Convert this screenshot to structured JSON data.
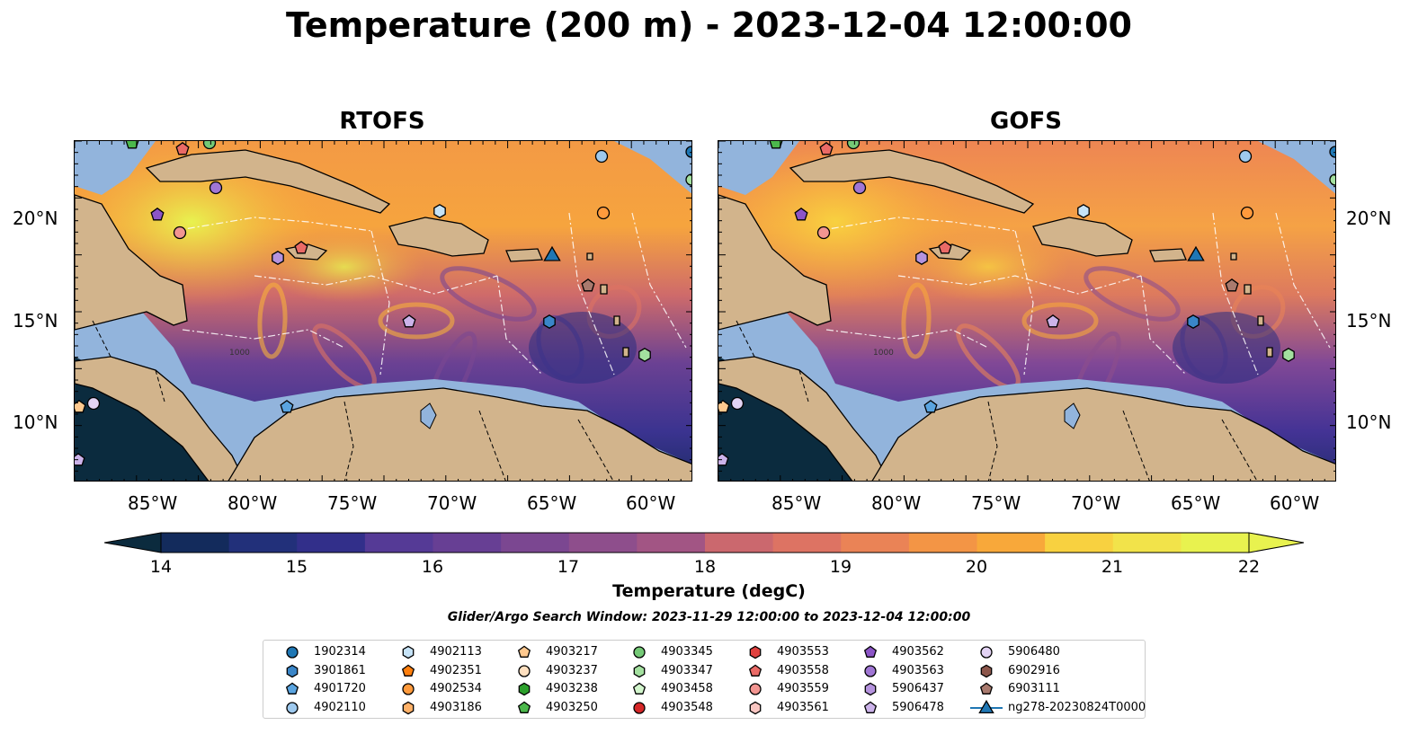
{
  "title": "Temperature (200 m) - 2023-12-04 12:00:00",
  "panels": [
    {
      "name": "RTOFS"
    },
    {
      "name": "GOFS"
    }
  ],
  "lon_ticks": [
    "85°W",
    "80°W",
    "75°W",
    "70°W",
    "65°W",
    "60°W"
  ],
  "lat_ticks": [
    "20°N",
    "15°N",
    "10°N"
  ],
  "colorbar": {
    "label": "Temperature (degC)",
    "min": 14,
    "max": 22,
    "ticks": [
      "14",
      "15",
      "16",
      "17",
      "18",
      "19",
      "20",
      "21",
      "22"
    ],
    "colors": [
      "#0b2b3e",
      "#132b5c",
      "#22307a",
      "#322f8a",
      "#443393",
      "#553a96",
      "#673f94",
      "#7b4791",
      "#8e4e8c",
      "#a25584",
      "#b75e79",
      "#cb686e",
      "#dd7363",
      "#ea8356",
      "#f39545",
      "#f8a83a",
      "#fbbd3b",
      "#f8d140",
      "#f2e34a",
      "#e8f24f"
    ]
  },
  "search_window": "Glider/Argo Search Window: 2023-11-29 12:00:00 to 2023-12-04 12:00:00",
  "legend": [
    {
      "label": "1902314",
      "marker": "circle",
      "color": "#1f77b4"
    },
    {
      "label": "3901861",
      "marker": "hexagon",
      "color": "#3a86c8"
    },
    {
      "label": "4901720",
      "marker": "pentagon",
      "color": "#5aa4e0"
    },
    {
      "label": "4902110",
      "marker": "circle",
      "color": "#9ec9ee"
    },
    {
      "label": "4902113",
      "marker": "hexagon",
      "color": "#c6e3f7"
    },
    {
      "label": "4902351",
      "marker": "pentagon",
      "color": "#ff7f0e"
    },
    {
      "label": "4902534",
      "marker": "circle",
      "color": "#ff9a3c"
    },
    {
      "label": "4903186",
      "marker": "hexagon",
      "color": "#ffb168"
    },
    {
      "label": "4903217",
      "marker": "pentagon",
      "color": "#ffc98f"
    },
    {
      "label": "4903237",
      "marker": "circle",
      "color": "#ffe0c0"
    },
    {
      "label": "4903238",
      "marker": "hexagon",
      "color": "#2ca02c"
    },
    {
      "label": "4903250",
      "marker": "pentagon",
      "color": "#4cb84c"
    },
    {
      "label": "4903345",
      "marker": "circle",
      "color": "#74c976"
    },
    {
      "label": "4903347",
      "marker": "hexagon",
      "color": "#a3e09f"
    },
    {
      "label": "4903458",
      "marker": "pentagon",
      "color": "#d2f5cc"
    },
    {
      "label": "4903548",
      "marker": "circle",
      "color": "#d62728"
    },
    {
      "label": "4903553",
      "marker": "hexagon",
      "color": "#e0413f"
    },
    {
      "label": "4903558",
      "marker": "pentagon",
      "color": "#ea6a66"
    },
    {
      "label": "4903559",
      "marker": "circle",
      "color": "#f29591"
    },
    {
      "label": "4903561",
      "marker": "hexagon",
      "color": "#f9c6c2"
    },
    {
      "label": "4903562",
      "marker": "pentagon",
      "color": "#8c55c7"
    },
    {
      "label": "4903563",
      "marker": "circle",
      "color": "#a076d4"
    },
    {
      "label": "5906437",
      "marker": "hexagon",
      "color": "#b593de"
    },
    {
      "label": "5906478",
      "marker": "pentagon",
      "color": "#ccb3ea"
    },
    {
      "label": "5906480",
      "marker": "circle",
      "color": "#e3d3f4"
    },
    {
      "label": "6902916",
      "marker": "hexagon",
      "color": "#8c564b"
    },
    {
      "label": "6903111",
      "marker": "pentagon",
      "color": "#a97a6e"
    },
    {
      "label": "ng278-20230824T0000",
      "marker": "triangle",
      "color": "#1f77b4"
    }
  ],
  "contour_label": "1000"
}
